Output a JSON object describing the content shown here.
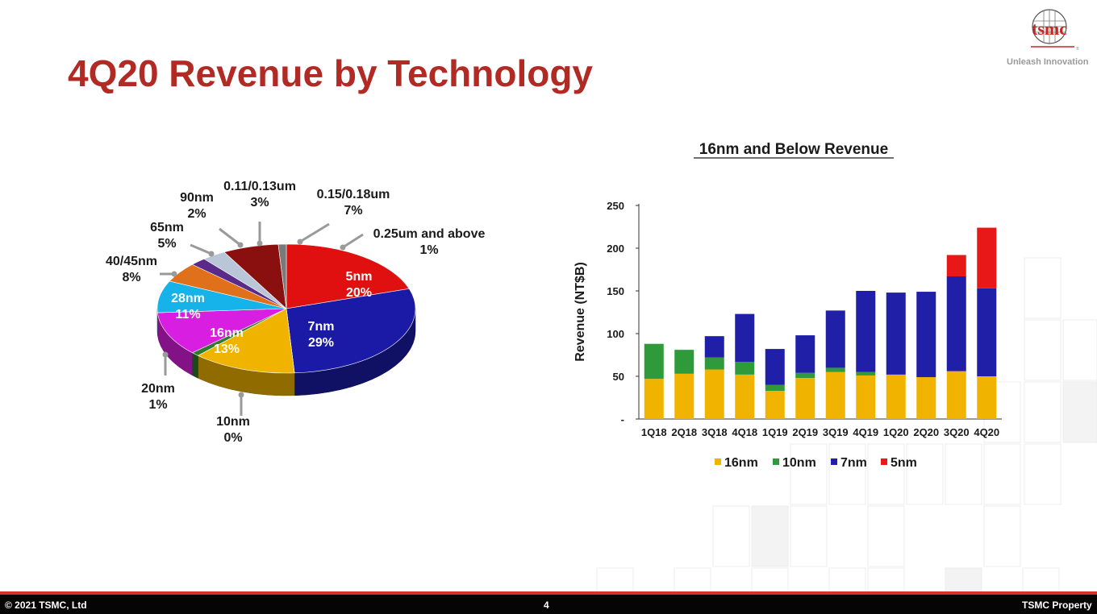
{
  "slide": {
    "title": "4Q20 Revenue by Technology",
    "logo_text": "tsmc",
    "tagline": "Unleash Innovation",
    "footer": {
      "copyright": "© 2021 TSMC, Ltd",
      "page": "4",
      "property": "TSMC Property"
    },
    "colors": {
      "title": "#b12a24",
      "footer_bar": "#050505",
      "footer_line": "#d9302b"
    }
  },
  "chart_data": [
    {
      "type": "pie",
      "title": "",
      "slices": [
        {
          "label": "5nm",
          "value": 20,
          "pct_text": "20%",
          "color": "#e01010"
        },
        {
          "label": "7nm",
          "value": 29,
          "pct_text": "29%",
          "color": "#1a1aa6"
        },
        {
          "label": "10nm",
          "value": 0,
          "pct_text": "0%",
          "color": "#2e8b3a"
        },
        {
          "label": "16nm",
          "value": 13,
          "pct_text": "13%",
          "color": "#f0b400"
        },
        {
          "label": "20nm",
          "value": 1,
          "pct_text": "1%",
          "color": "#2f7a2f"
        },
        {
          "label": "28nm",
          "value": 11,
          "pct_text": "11%",
          "color": "#d81ee0"
        },
        {
          "label": "40/45nm",
          "value": 8,
          "pct_text": "8%",
          "color": "#16b2ea"
        },
        {
          "label": "65nm",
          "value": 5,
          "pct_text": "5%",
          "color": "#e0701a"
        },
        {
          "label": "90nm",
          "value": 2,
          "pct_text": "2%",
          "color": "#5a2a8a"
        },
        {
          "label": "0.11/0.13um",
          "value": 3,
          "pct_text": "3%",
          "color": "#b9c6d8"
        },
        {
          "label": "0.15/0.18um",
          "value": 7,
          "pct_text": "7%",
          "color": "#8a1010"
        },
        {
          "label": "0.25um and above",
          "value": 1,
          "pct_text": "1%",
          "color": "#7a7a7a"
        }
      ]
    },
    {
      "type": "bar",
      "stacked": true,
      "title": "16nm and Below Revenue",
      "xlabel": "",
      "ylabel": "Revenue (NT$B)",
      "ylim": [
        0,
        250
      ],
      "yticks": [
        "-",
        "50",
        "100",
        "150",
        "200",
        "250"
      ],
      "grid": false,
      "legend_position": "bottom",
      "categories": [
        "1Q18",
        "2Q18",
        "3Q18",
        "4Q18",
        "1Q19",
        "2Q19",
        "3Q19",
        "4Q19",
        "1Q20",
        "2Q20",
        "3Q20",
        "4Q20"
      ],
      "series": [
        {
          "name": "16nm",
          "color": "#f0b400",
          "values": [
            47,
            53,
            58,
            52,
            33,
            48,
            55,
            51,
            52,
            49,
            56,
            50
          ]
        },
        {
          "name": "10nm",
          "color": "#2e9a3a",
          "values": [
            41,
            28,
            14,
            15,
            7,
            6,
            5,
            4,
            0,
            0,
            0,
            0
          ]
        },
        {
          "name": "7nm",
          "color": "#1f1fa8",
          "values": [
            0,
            0,
            25,
            56,
            42,
            44,
            67,
            95,
            96,
            100,
            111,
            103
          ]
        },
        {
          "name": "5nm",
          "color": "#e81818",
          "values": [
            0,
            0,
            0,
            0,
            0,
            0,
            0,
            0,
            0,
            0,
            25,
            71
          ]
        }
      ]
    }
  ]
}
